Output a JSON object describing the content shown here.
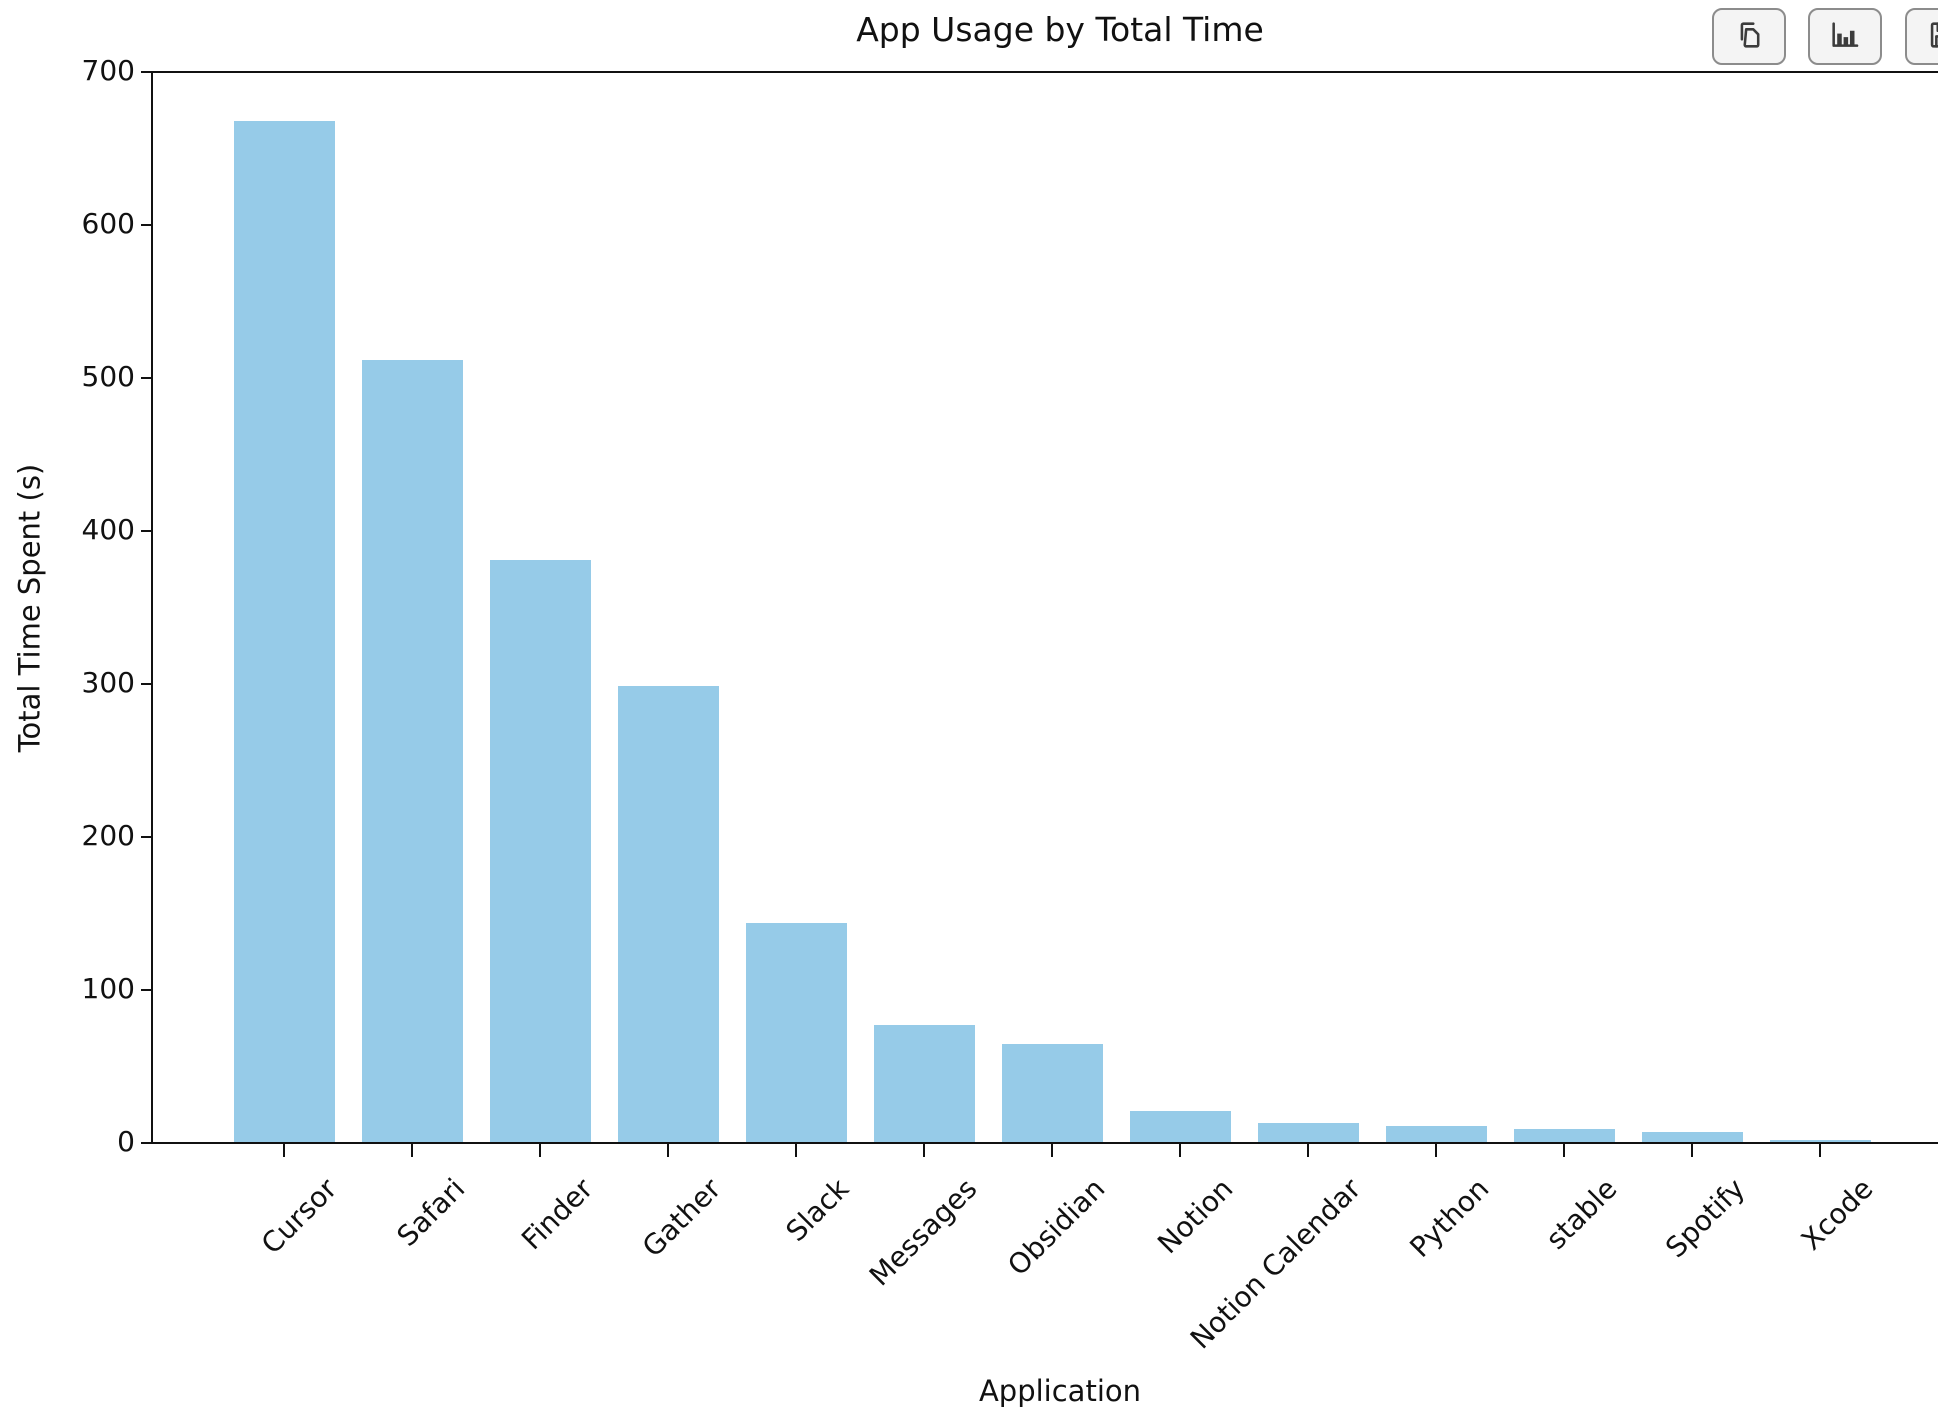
{
  "toolbar": {
    "buttons": [
      {
        "name": "copy",
        "icon": "copy-icon"
      },
      {
        "name": "bar-chart",
        "icon": "bar-chart-icon"
      },
      {
        "name": "save",
        "icon": "save-icon"
      }
    ]
  },
  "chart_data": {
    "type": "bar",
    "title": "App Usage by Total Time",
    "xlabel": "Application",
    "ylabel": "Total Time Spent (s)",
    "categories": [
      "Cursor",
      "Safari",
      "Finder",
      "Gather",
      "Slack",
      "Messages",
      "Obsidian",
      "Notion",
      "Notion Calendar",
      "Python",
      "stable",
      "Spotify",
      "Xcode"
    ],
    "values": [
      668,
      512,
      381,
      299,
      144,
      77,
      65,
      21,
      13,
      11,
      9,
      7,
      2
    ],
    "ylim": [
      0,
      700
    ],
    "yticks": [
      0,
      100,
      200,
      300,
      400,
      500,
      600,
      700
    ],
    "x_tick_rotation_deg": 45,
    "bar_color": "#96CBE8",
    "axis_color": "#111111",
    "grid": false,
    "legend": "none"
  }
}
